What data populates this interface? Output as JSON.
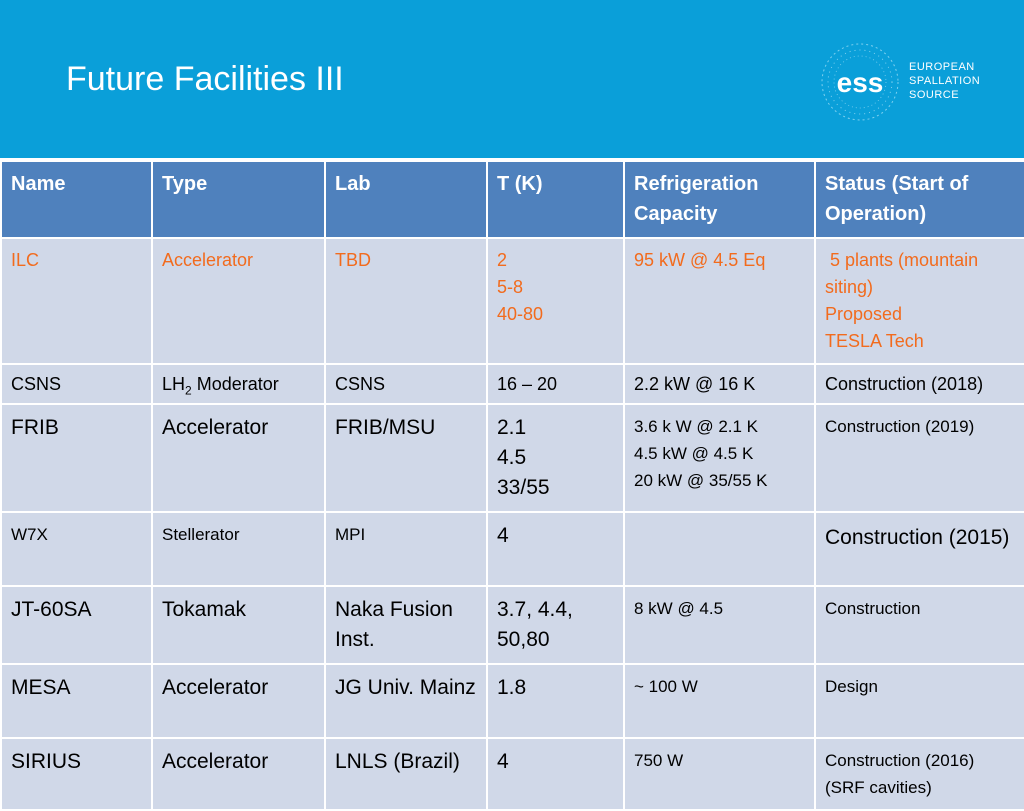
{
  "slide": {
    "title": "Future Facilities III"
  },
  "logo": {
    "mark": "ess",
    "lines": [
      "EUROPEAN",
      "SPALLATION",
      "SOURCE"
    ]
  },
  "table": {
    "headers": [
      "Name",
      "Type",
      "Lab",
      "T (K)",
      "Refrigeration Capacity",
      "Status (Start of Operation)"
    ],
    "rows": [
      {
        "name": "ILC",
        "type": "Accelerator",
        "lab": "TBD",
        "t": [
          "2",
          "5-8",
          "40-80"
        ],
        "refrigeration": "95 kW @ 4.5 Eq",
        "status": [
          " 5 plants (mountain siting)",
          "Proposed",
          "TESLA Tech"
        ]
      },
      {
        "name": "CSNS",
        "type_prefix": "LH",
        "type_sub": "2",
        "type_suffix": " Moderator",
        "lab": "CSNS",
        "t": "16 – 20",
        "refrigeration": "2.2 kW @ 16 K",
        "status": "Construction (2018)"
      },
      {
        "name": "FRIB",
        "type": "Accelerator",
        "lab": "FRIB/MSU",
        "t": [
          "2.1",
          "4.5",
          "33/55"
        ],
        "refrigeration": [
          "3.6 k W @ 2.1 K",
          "4.5 kW @ 4.5 K",
          "20 kW @ 35/55 K"
        ],
        "status": "Construction (2019)"
      },
      {
        "name": "W7X",
        "type": "Stellerator",
        "lab": "MPI",
        "t": "4",
        "refrigeration": "",
        "status": "Construction (2015)"
      },
      {
        "name": "JT-60SA",
        "type": "Tokamak",
        "lab": "Naka Fusion Inst.",
        "t": "3.7, 4.4, 50,80",
        "refrigeration": "8 kW @ 4.5",
        "status": "Construction"
      },
      {
        "name": "MESA",
        "type": "Accelerator",
        "lab": "JG Univ. Mainz",
        "t": "1.8",
        "refrigeration": "~ 100 W",
        "status": "Design"
      },
      {
        "name": "SIRIUS",
        "type": "Accelerator",
        "lab": "LNLS (Brazil)",
        "t": "4",
        "refrigeration": "750 W",
        "status": "Construction (2016) (SRF cavities)"
      }
    ]
  },
  "colors": {
    "header_band": "#0a9fd9",
    "table_header": "#4f81bd",
    "table_cell": "#d0d8e8",
    "highlight_text": "#f26b1d"
  }
}
